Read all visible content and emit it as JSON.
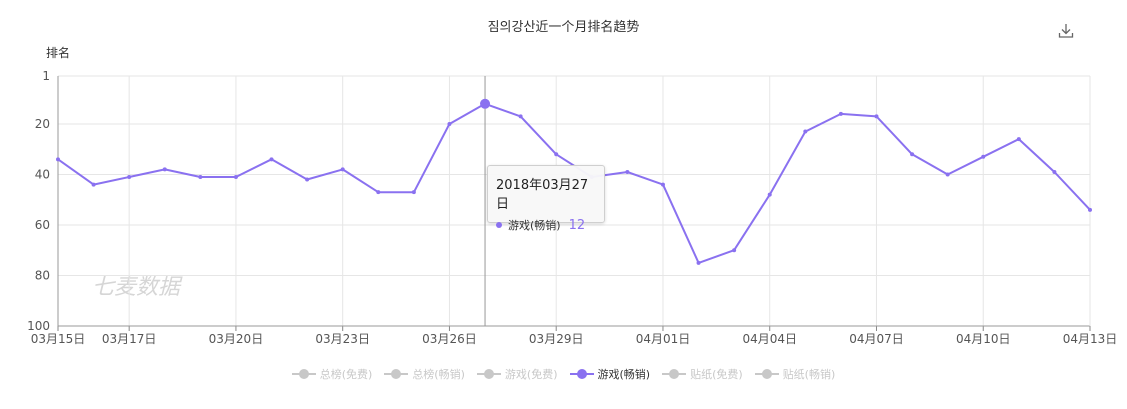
{
  "title": "짐의강산近一个月排名趋势",
  "download_icon": "download-icon",
  "watermark": "七麦数据",
  "colors": {
    "series": "#8a71f0",
    "inactive": "#c8c8c8",
    "grid": "#e6e6e6"
  },
  "chart_data": {
    "type": "line",
    "ylabel": "排名",
    "y_inverted": true,
    "ylim": [
      1,
      100
    ],
    "yticks": [
      1,
      20,
      40,
      60,
      80,
      100
    ],
    "xticks": [
      "03月15日",
      "03月17日",
      "03月20日",
      "03月23日",
      "03月26日",
      "03月29日",
      "04月01日",
      "04月04日",
      "04月07日",
      "04月10日",
      "04月13日"
    ],
    "x": [
      "03-15",
      "03-16",
      "03-17",
      "03-18",
      "03-19",
      "03-20",
      "03-21",
      "03-22",
      "03-23",
      "03-24",
      "03-25",
      "03-26",
      "03-27",
      "03-28",
      "03-29",
      "03-30",
      "03-31",
      "04-01",
      "04-02",
      "04-03",
      "04-04",
      "04-05",
      "04-06",
      "04-07",
      "04-08",
      "04-09",
      "04-10",
      "04-11",
      "04-12",
      "04-13"
    ],
    "series": [
      {
        "name": "游戏(畅销)",
        "values": [
          34,
          44,
          41,
          38,
          41,
          41,
          34,
          42,
          38,
          47,
          47,
          20,
          12,
          17,
          32,
          41,
          39,
          44,
          75,
          70,
          48,
          23,
          16,
          17,
          32,
          40,
          33,
          26,
          39,
          54
        ]
      }
    ],
    "grid": true,
    "legend_position": "bottom"
  },
  "legend": [
    {
      "label": "总榜(免费)",
      "active": false
    },
    {
      "label": "总榜(畅销)",
      "active": false
    },
    {
      "label": "游戏(免费)",
      "active": false
    },
    {
      "label": "游戏(畅销)",
      "active": true
    },
    {
      "label": "贴纸(免费)",
      "active": false
    },
    {
      "label": "贴纸(畅销)",
      "active": false
    }
  ],
  "tooltip": {
    "date": "2018年03月27日",
    "series": "游戏(畅销)",
    "value": "12"
  }
}
